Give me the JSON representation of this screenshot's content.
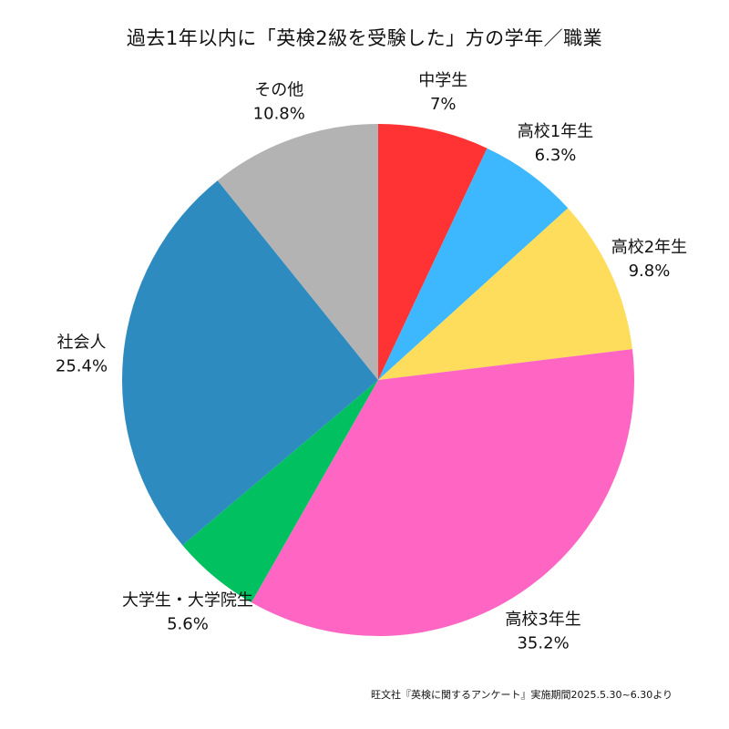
{
  "chart_data": {
    "type": "pie",
    "title": "過去1年以内に「英検2級を受験した」方の学年／職業",
    "start_angle_deg": 90,
    "direction": "clockwise",
    "slices": [
      {
        "label": "中学生",
        "value": 7.0,
        "display": "7%",
        "color": "#ff3333"
      },
      {
        "label": "高校1年生",
        "value": 6.3,
        "display": "6.3%",
        "color": "#3db8ff"
      },
      {
        "label": "高校2年生",
        "value": 9.8,
        "display": "9.8%",
        "color": "#ffdd5c"
      },
      {
        "label": "高校3年生",
        "value": 35.2,
        "display": "35.2%",
        "color": "#ff66c4"
      },
      {
        "label": "大学生・大学院生",
        "value": 5.6,
        "display": "5.6%",
        "color": "#00c05f"
      },
      {
        "label": "社会人",
        "value": 25.4,
        "display": "25.4%",
        "color": "#2e8bbf"
      },
      {
        "label": "その他",
        "value": 10.8,
        "display": "10.8%",
        "color": "#b3b3b3"
      }
    ]
  },
  "source": "旺文社『英検に関するアンケート』実施期間2025.5.30~6.30より"
}
